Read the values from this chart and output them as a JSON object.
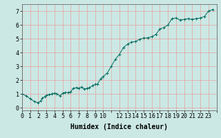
{
  "xlabel": "Humidex (Indice chaleur)",
  "ylabel": "",
  "background_color": "#cbe8e4",
  "line_color": "#006b5e",
  "marker_color": "#006b5e",
  "grid_color": "#e8a0a0",
  "x_values": [
    0,
    0.5,
    1,
    1.5,
    2,
    2.3,
    2.5,
    2.8,
    3,
    3.3,
    3.7,
    4,
    4.3,
    4.7,
    5,
    5.3,
    5.7,
    6,
    6.3,
    6.7,
    7,
    7.3,
    7.7,
    8,
    8.3,
    8.7,
    9,
    9.3,
    9.7,
    10,
    10.5,
    11,
    11.5,
    12,
    12.5,
    13,
    13.5,
    14,
    14.5,
    15,
    15.5,
    16,
    16.5,
    17,
    17.5,
    18,
    18.5,
    19,
    19.5,
    20,
    20.5,
    21,
    21.5,
    22,
    22.5,
    23,
    23.5
  ],
  "y_values": [
    1.0,
    0.85,
    0.65,
    0.45,
    0.35,
    0.5,
    0.7,
    0.8,
    0.9,
    0.95,
    1.0,
    1.05,
    1.0,
    0.85,
    1.05,
    1.1,
    1.1,
    1.15,
    1.4,
    1.45,
    1.4,
    1.5,
    1.35,
    1.4,
    1.45,
    1.6,
    1.7,
    1.7,
    2.1,
    2.25,
    2.5,
    3.0,
    3.5,
    3.85,
    4.35,
    4.6,
    4.75,
    4.8,
    4.95,
    5.05,
    5.05,
    5.15,
    5.3,
    5.7,
    5.8,
    6.0,
    6.45,
    6.5,
    6.35,
    6.4,
    6.45,
    6.4,
    6.45,
    6.5,
    6.6,
    7.0,
    7.1
  ],
  "xlim": [
    0,
    24
  ],
  "ylim": [
    -0.2,
    7.5
  ],
  "xticks": [
    0,
    1,
    2,
    3,
    4,
    5,
    6,
    7,
    8,
    9,
    10,
    12,
    13,
    14,
    15,
    16,
    17,
    18,
    19,
    20,
    21,
    22,
    23
  ],
  "yticks": [
    0,
    1,
    2,
    3,
    4,
    5,
    6,
    7
  ],
  "tick_fontsize": 6,
  "label_fontsize": 7,
  "spine_color": "#555555"
}
